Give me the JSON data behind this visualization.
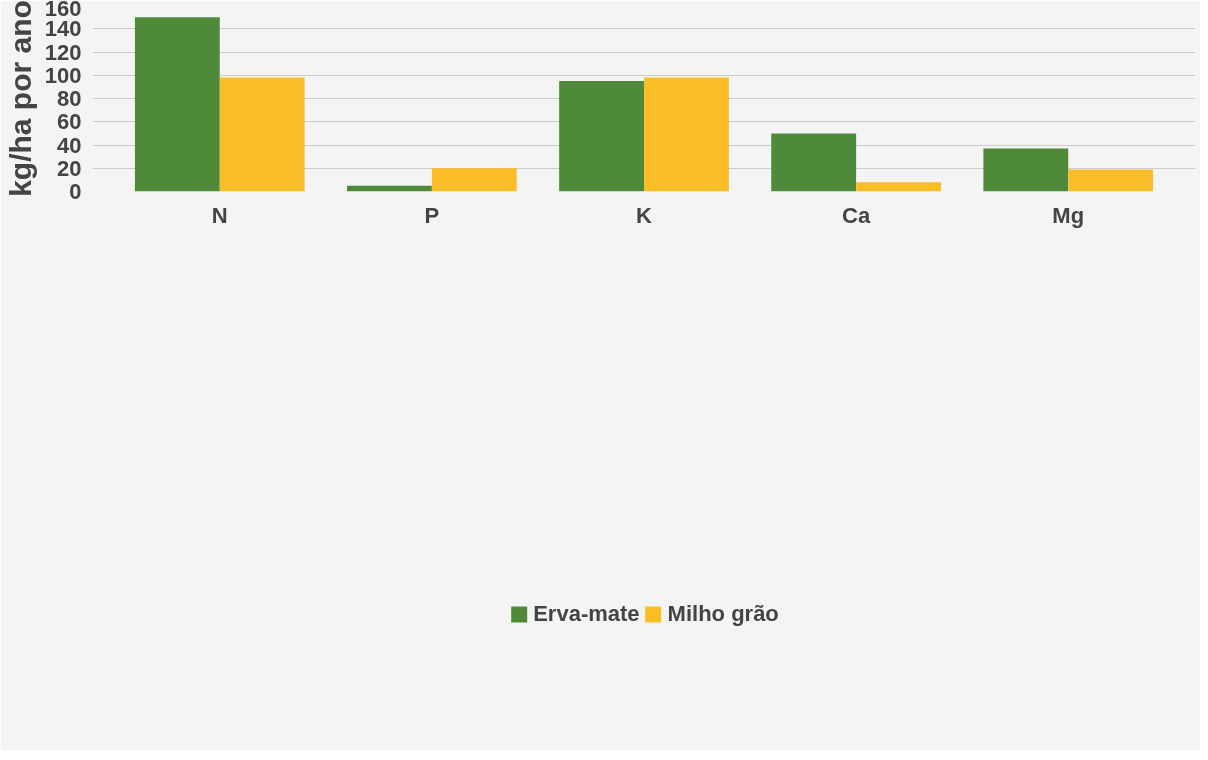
{
  "chart_data": {
    "type": "bar",
    "ylabel": "kg/ha por ano",
    "categories": [
      "N",
      "P",
      "K",
      "Ca",
      "Mg"
    ],
    "series": [
      {
        "name": "Erva-mate",
        "color": "#4e8a3a",
        "values": [
          150,
          5,
          95,
          50,
          37
        ]
      },
      {
        "name": "Milho grão",
        "color": "#fbbd26",
        "values": [
          98,
          20,
          98,
          8,
          19
        ]
      }
    ],
    "ylim": [
      0,
      160
    ],
    "yticks": [
      0,
      20,
      40,
      60,
      80,
      100,
      120,
      140,
      160
    ],
    "grid": "y",
    "legend": "bottom"
  }
}
